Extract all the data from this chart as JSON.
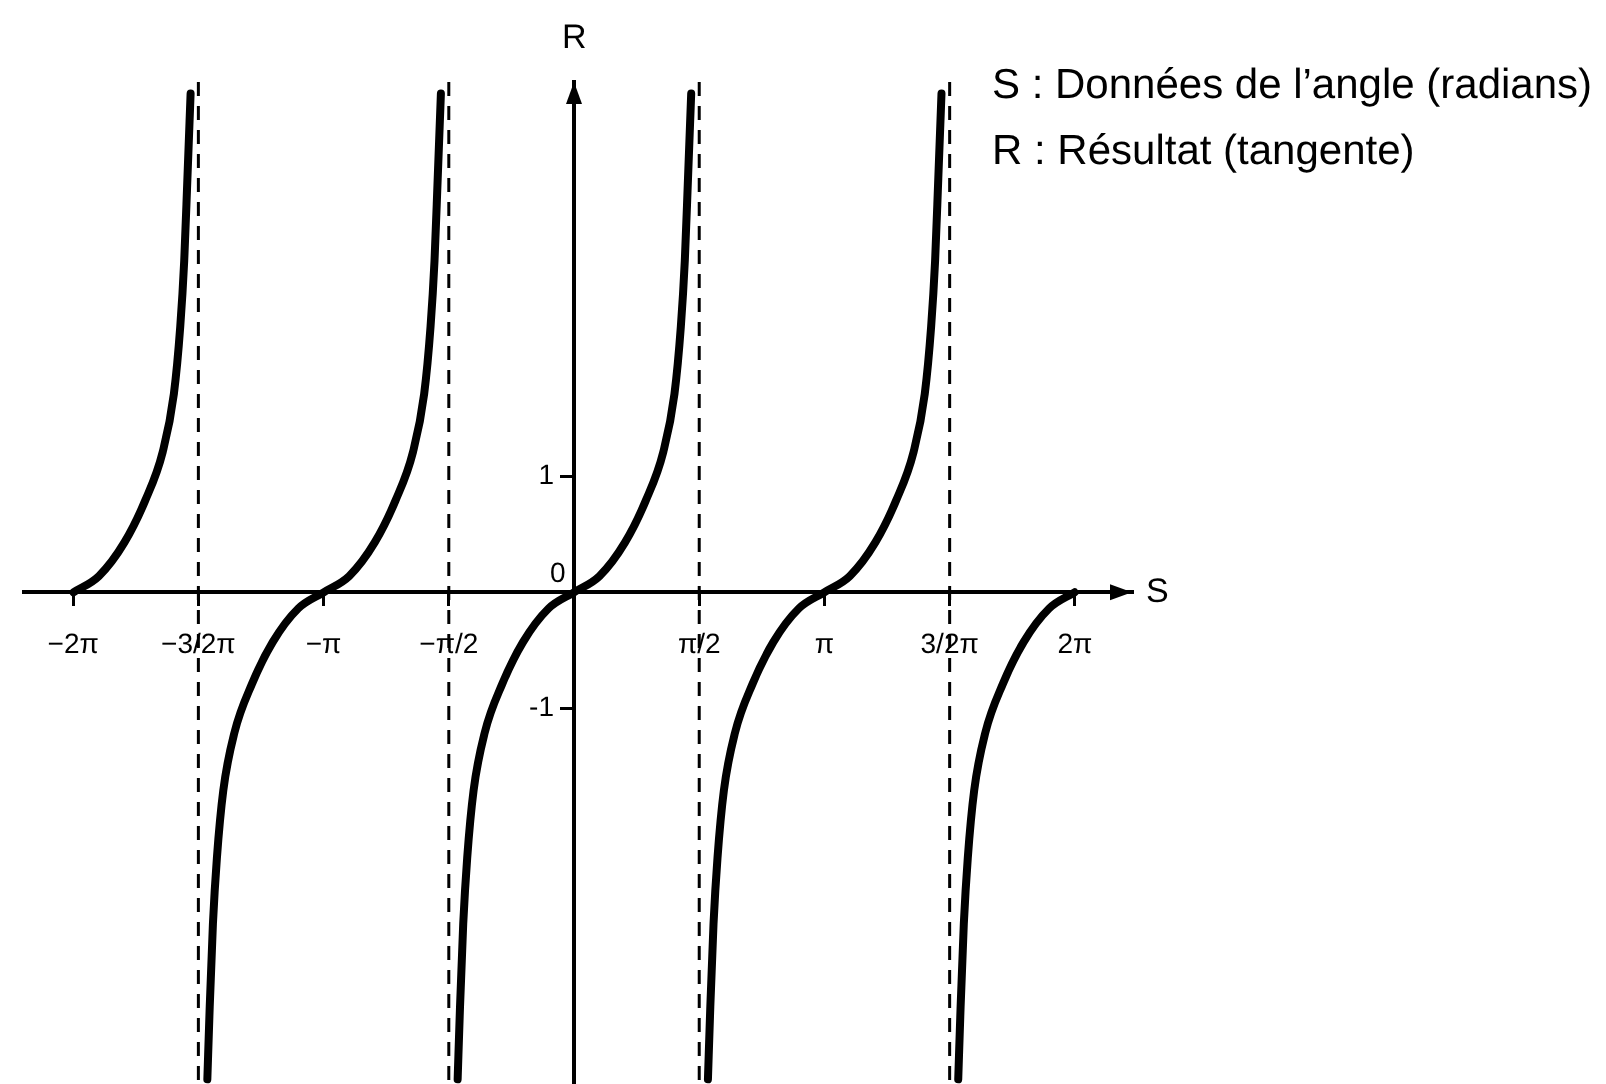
{
  "chart_data": {
    "type": "line",
    "xlabel": "S",
    "ylabel": "R",
    "annotations": [
      "S : Données de l’angle (radians)",
      "R : Résultat (tangente)",
      {
        "text": "0",
        "x": 0,
        "y": 0
      }
    ],
    "series": [
      {
        "color": "#000000",
        "x": [
          -6.28,
          -5.96,
          -5.64,
          -5.38,
          -5.16,
          -5.02,
          -4.94,
          -4.89,
          -4.85,
          -4.81
        ],
        "values": [
          0,
          0.14,
          0.43,
          0.79,
          1.21,
          1.71,
          2.29,
          2.86,
          3.57,
          4.3
        ]
      },
      {
        "color": "#000000",
        "x": [
          -4.6,
          -4.57,
          -4.53,
          -4.48,
          -4.4,
          -4.26,
          -4.04,
          -3.78,
          -3.46,
          -3.14,
          -2.82,
          -2.5,
          -2.24,
          -2.02,
          -1.88,
          -1.8,
          -1.75,
          -1.71,
          -1.67
        ],
        "values": [
          -4.2,
          -3.57,
          -2.86,
          -2.29,
          -1.71,
          -1.21,
          -0.79,
          -0.43,
          -0.14,
          0,
          0.14,
          0.43,
          0.79,
          1.21,
          1.71,
          2.29,
          2.86,
          3.57,
          4.3
        ]
      },
      {
        "color": "#000000",
        "x": [
          -1.46,
          -1.43,
          -1.39,
          -1.34,
          -1.26,
          -1.12,
          -0.9,
          -0.64,
          -0.32,
          0,
          0.32,
          0.64,
          0.9,
          1.12,
          1.26,
          1.34,
          1.39,
          1.43,
          1.47
        ],
        "values": [
          -4.2,
          -3.57,
          -2.86,
          -2.29,
          -1.71,
          -1.21,
          -0.79,
          -0.43,
          -0.14,
          0,
          0.14,
          0.43,
          0.79,
          1.21,
          1.71,
          2.29,
          2.86,
          3.57,
          4.3
        ]
      },
      {
        "color": "#000000",
        "x": [
          1.68,
          1.71,
          1.75,
          1.8,
          1.88,
          2.02,
          2.24,
          2.5,
          2.82,
          3.14,
          3.46,
          3.78,
          4.04,
          4.26,
          4.4,
          4.48,
          4.53,
          4.57,
          4.61
        ],
        "values": [
          -4.2,
          -3.57,
          -2.86,
          -2.29,
          -1.71,
          -1.21,
          -0.79,
          -0.43,
          -0.14,
          0,
          0.14,
          0.43,
          0.79,
          1.21,
          1.71,
          2.29,
          2.86,
          3.57,
          4.3
        ]
      },
      {
        "color": "#000000",
        "x": [
          4.82,
          4.85,
          4.89,
          4.94,
          5.02,
          5.16,
          5.38,
          5.64,
          5.96,
          6.28
        ],
        "values": [
          -4.2,
          -3.57,
          -2.86,
          -2.29,
          -1.71,
          -1.21,
          -0.79,
          -0.43,
          -0.14,
          0
        ]
      }
    ],
    "xlim": [
      -6.9,
      7.0
    ],
    "ylim": [
      -4.24,
      4.4
    ],
    "xticks": [
      {
        "value": -6.2832,
        "label": "−2π"
      },
      {
        "value": -4.7124,
        "label": "−3/2π"
      },
      {
        "value": -3.1416,
        "label": "−π"
      },
      {
        "value": -1.5708,
        "label": "−π/2"
      },
      {
        "value": 1.5708,
        "label": "π/2"
      },
      {
        "value": 3.1416,
        "label": "π"
      },
      {
        "value": 4.7124,
        "label": "3/2π"
      },
      {
        "value": 6.2832,
        "label": "2π"
      }
    ],
    "yticks": [
      -1,
      1
    ],
    "ref_lines": [
      {
        "axis": "x",
        "value": -4.7124,
        "color": "#000000",
        "line_style": "dashed"
      },
      {
        "axis": "x",
        "value": -1.5708,
        "color": "#000000",
        "line_style": "dashed"
      },
      {
        "axis": "x",
        "value": 1.5708,
        "color": "#000000",
        "line_style": "dashed"
      },
      {
        "axis": "x",
        "value": 4.7124,
        "color": "#000000",
        "line_style": "dashed"
      }
    ]
  }
}
